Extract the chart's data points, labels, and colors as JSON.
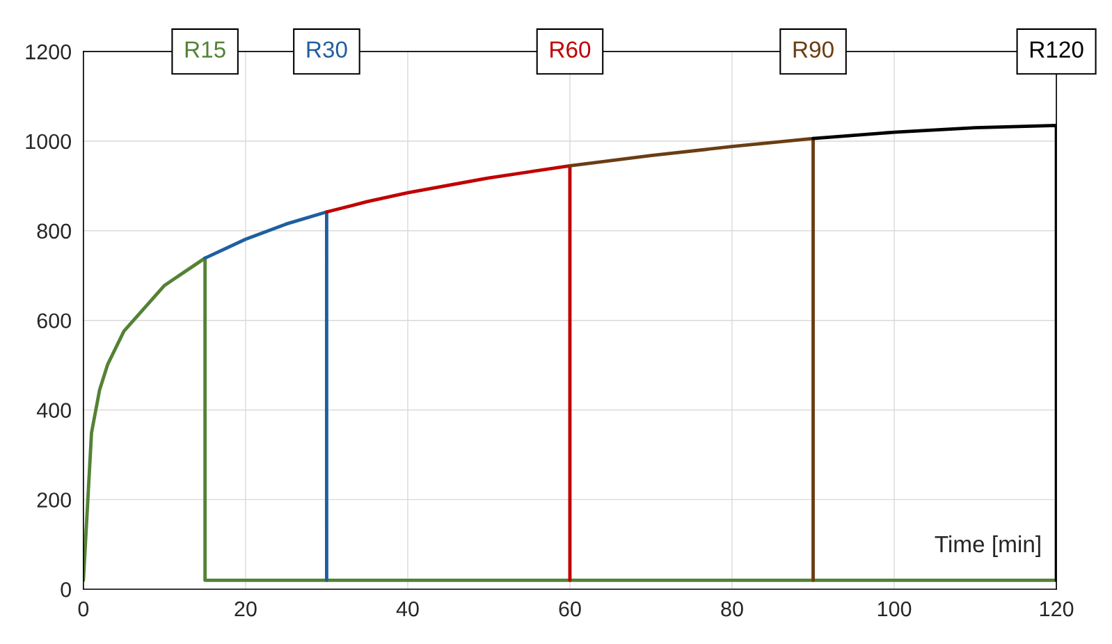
{
  "chart_data": {
    "type": "line",
    "xlabel": "Time [min]",
    "xlim": [
      0,
      120
    ],
    "ylim": [
      0,
      1200
    ],
    "xticks": [
      0,
      20,
      40,
      60,
      80,
      100,
      120
    ],
    "yticks": [
      0,
      200,
      400,
      600,
      800,
      1000,
      1200
    ],
    "grid": true,
    "legend": false,
    "series": [
      {
        "name": "R15",
        "color": "#548235",
        "x": [
          0,
          1,
          2,
          3,
          5,
          10,
          15,
          15,
          120
        ],
        "values": [
          20,
          349,
          445,
          502,
          576,
          678,
          739,
          20,
          20
        ]
      },
      {
        "name": "R30",
        "color": "#1f5f9f",
        "x": [
          15,
          20,
          25,
          30,
          30
        ],
        "values": [
          739,
          781,
          815,
          842,
          20
        ]
      },
      {
        "name": "R60",
        "color": "#c00000",
        "x": [
          30,
          35,
          40,
          50,
          60,
          60
        ],
        "values": [
          842,
          865,
          885,
          918,
          945,
          20
        ]
      },
      {
        "name": "R90",
        "color": "#6b3d14",
        "x": [
          60,
          70,
          80,
          90,
          90
        ],
        "values": [
          945,
          968,
          988,
          1006,
          20
        ]
      },
      {
        "name": "R120",
        "color": "#000000",
        "x": [
          90,
          100,
          110,
          120,
          120
        ],
        "values": [
          1006,
          1020,
          1030,
          1035,
          20
        ]
      }
    ]
  }
}
